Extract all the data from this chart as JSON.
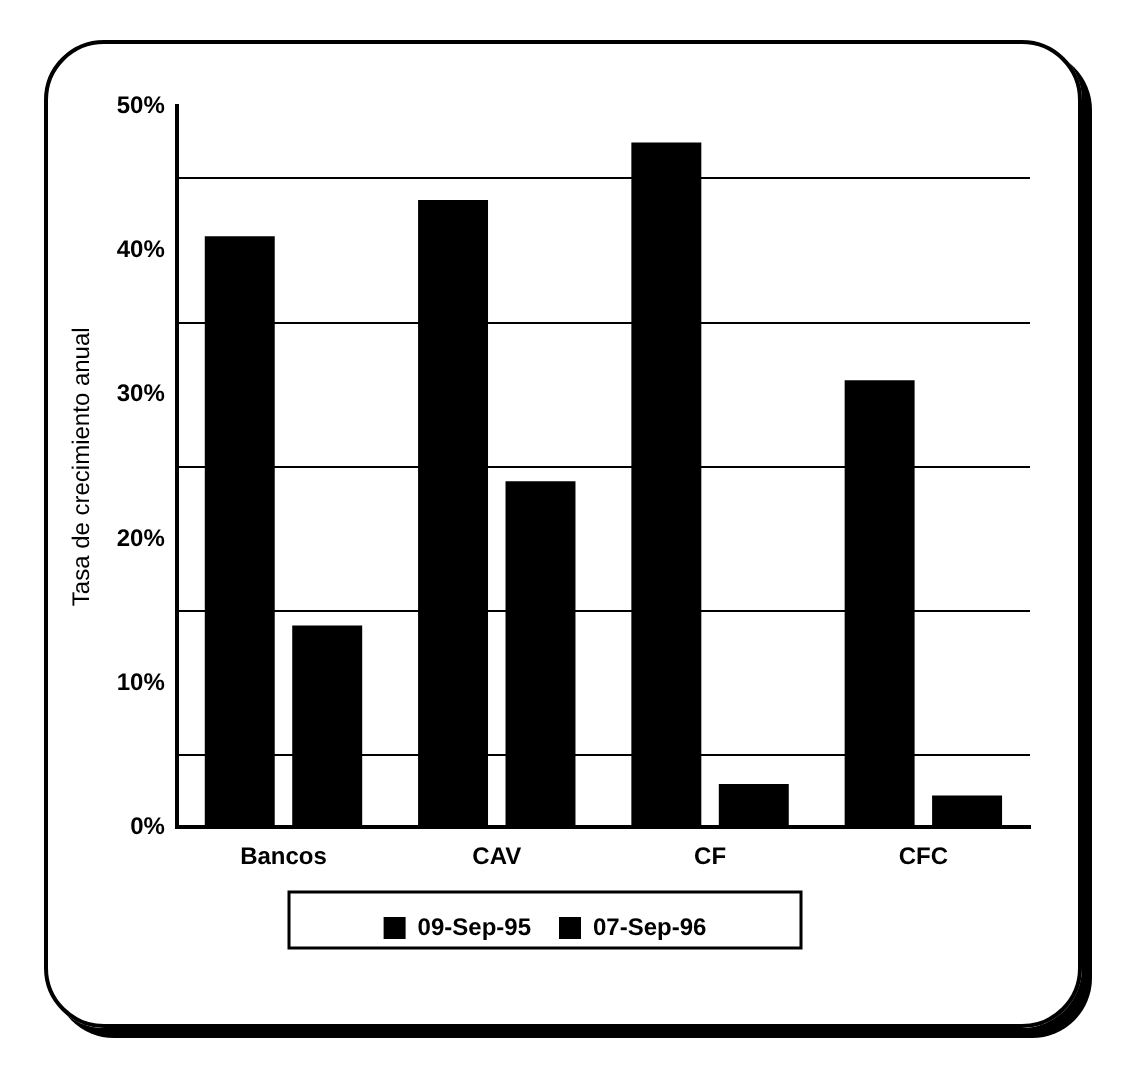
{
  "chart_data": {
    "type": "bar",
    "ylabel": "Tasa de crecimiento anual",
    "categories": [
      "Bancos",
      "CAV",
      "CF",
      "CFC"
    ],
    "series": [
      {
        "name": "09-Sep-95",
        "color": "#000000",
        "values": [
          41,
          43.5,
          47.5,
          31
        ]
      },
      {
        "name": "07-Sep-96",
        "color": "#000000",
        "values": [
          14,
          24,
          3,
          2.2
        ]
      }
    ],
    "ylim": [
      0,
      50
    ],
    "yticks": [
      {
        "value": 0,
        "label": "0%"
      },
      {
        "value": 5,
        "label": null
      },
      {
        "value": 10,
        "label": "10%"
      },
      {
        "value": 15,
        "label": null
      },
      {
        "value": 20,
        "label": "20%"
      },
      {
        "value": 25,
        "label": null
      },
      {
        "value": 30,
        "label": "30%"
      },
      {
        "value": 35,
        "label": null
      },
      {
        "value": 40,
        "label": "40%"
      },
      {
        "value": 45,
        "label": null
      },
      {
        "value": 50,
        "label": "50%"
      }
    ],
    "grid": "y",
    "legend": "bottom"
  }
}
